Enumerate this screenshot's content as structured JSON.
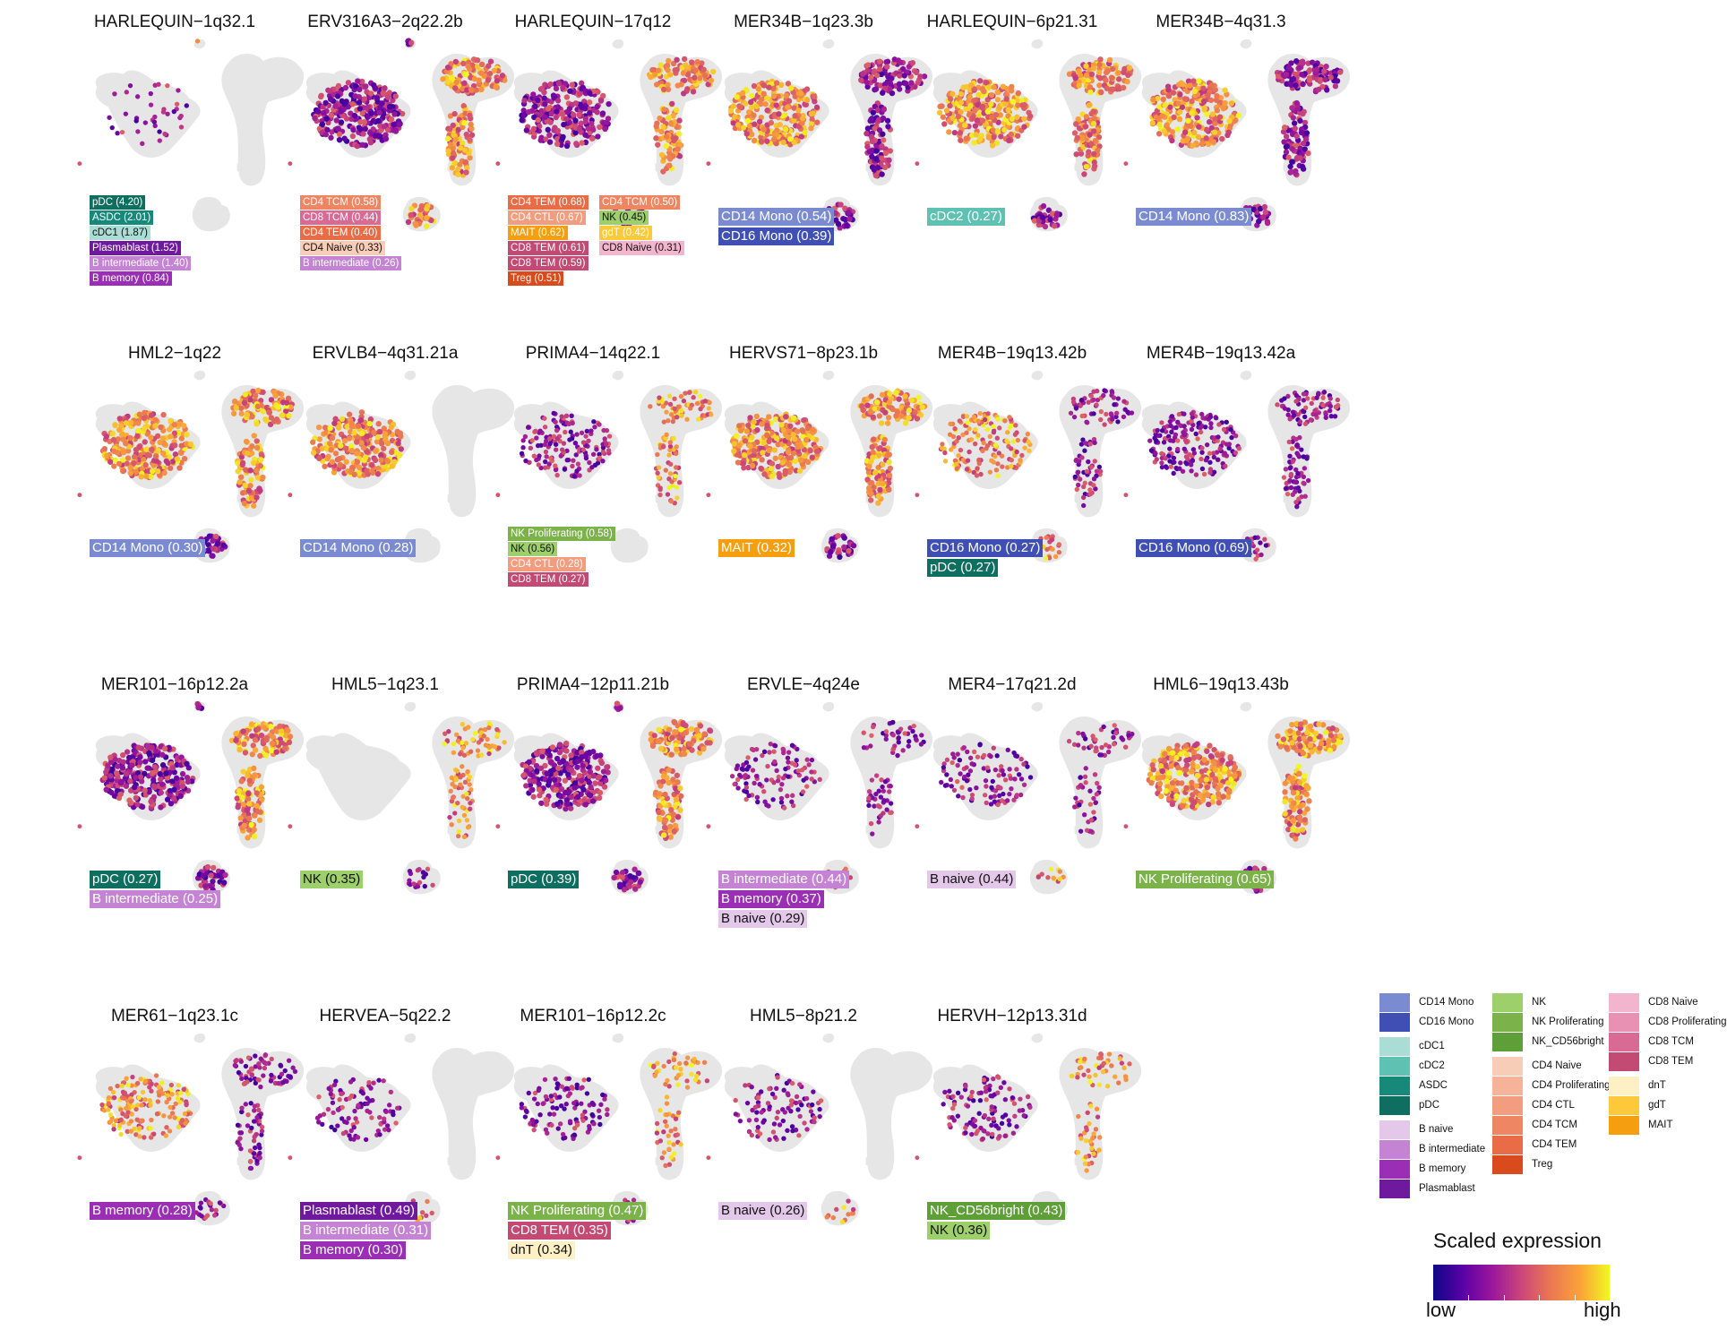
{
  "chart_data": {
    "type": "scatter",
    "description_axes": "",
    "colorbar": {
      "title": "Scaled expression",
      "low_label": "low",
      "high_label": "high",
      "colormap": [
        "#0d0887",
        "#5a01a6",
        "#9a179b",
        "#cb4679",
        "#eb7852",
        "#fba238",
        "#f0f921"
      ]
    },
    "celltype_colors": {
      "CD14 Mono": "#7a8bd1",
      "CD16 Mono": "#3f4fb3",
      "cDC1": "#a9ddd6",
      "cDC2": "#5fc1b2",
      "ASDC": "#16897a",
      "pDC": "#0e6f61",
      "B naive": "#e3c8ea",
      "B intermediate": "#c583d3",
      "B memory": "#9a2fb5",
      "Plasmablast": "#6f1a9e",
      "NK": "#9dcf6b",
      "NK Proliferating": "#7bb34a",
      "NK_CD56bright": "#5e9f38",
      "CD4 Naive": "#f8cdb8",
      "CD4 Proliferating": "#f5b49a",
      "CD4 CTL": "#f29d80",
      "CD4 TCM": "#ee8663",
      "CD4 TEM": "#e96c47",
      "Treg": "#d94a1c",
      "CD8 Naive": "#f3b5cd",
      "CD8 Proliferating": "#e891b2",
      "CD8 TCM": "#d86a93",
      "CD8 TEM": "#c24a73",
      "dnT": "#fdf0c4",
      "gdT": "#fbc93a",
      "MAIT": "#f59f10"
    },
    "legend": {
      "placement": "bottom-right",
      "columns": [
        [
          [
            "CD14 Mono",
            "CD16 Mono"
          ],
          [
            "cDC1",
            "cDC2",
            "ASDC",
            "pDC"
          ],
          [
            "B naive",
            "B intermediate",
            "B memory",
            "Plasmablast"
          ]
        ],
        [
          [
            "NK",
            "NK Proliferating",
            "NK_CD56bright"
          ],
          [
            "CD4 Naive",
            "CD4 Proliferating",
            "CD4 CTL",
            "CD4 TCM",
            "CD4 TEM",
            "Treg"
          ]
        ],
        [
          [
            "CD8 Naive",
            "CD8 Proliferating",
            "CD8 TCM",
            "CD8 TEM"
          ],
          [
            "dnT",
            "gdT",
            "MAIT"
          ]
        ]
      ]
    },
    "panels": [
      {
        "title": "HARLEQUIN−1q32.1",
        "density": 0.12,
        "hot": [
          "pdc"
        ],
        "regions": [
          "pdc",
          "mono"
        ],
        "labels": [
          [
            "pDC (4.20)",
            "pDC"
          ],
          [
            "ASDC (2.01)",
            "ASDC"
          ],
          [
            "cDC1 (1.87)",
            "cDC1"
          ],
          [
            "Plasmablast (1.52)",
            "Plasmablast"
          ],
          [
            "B intermediate (1.40)",
            "B intermediate"
          ],
          [
            "B memory (0.84)",
            "B memory"
          ]
        ],
        "size": "small"
      },
      {
        "title": "ERV316A3−2q22.2b",
        "density": 0.9,
        "hot": [
          "t",
          "b"
        ],
        "regions": [
          "mono",
          "t",
          "b",
          "pdc"
        ],
        "labels": [
          [
            "CD4 TCM (0.58)",
            "CD4 TCM"
          ],
          [
            "CD8 TCM (0.44)",
            "CD8 TCM"
          ],
          [
            "CD4 TEM (0.40)",
            "CD4 TEM"
          ],
          [
            "CD4 Naive (0.33)",
            "CD4 Naive"
          ],
          [
            "B intermediate (0.26)",
            "B intermediate"
          ]
        ],
        "size": "small"
      },
      {
        "title": "HARLEQUIN−17q12",
        "density": 0.8,
        "hot": [
          "t"
        ],
        "regions": [
          "t",
          "mono",
          "b"
        ],
        "labels": [
          [
            "CD4 TEM (0.68)",
            "CD4 TEM"
          ],
          [
            "CD4 CTL (0.67)",
            "CD4 CTL"
          ],
          [
            "MAIT (0.62)",
            "MAIT"
          ],
          [
            "CD8 TEM (0.61)",
            "CD8 TEM"
          ],
          [
            "CD8 TEM (0.59)",
            "CD8 TEM"
          ],
          [
            "Treg (0.51)",
            "Treg"
          ]
        ],
        "labels2": [
          [
            "CD4 TCM (0.50)",
            "CD4 TCM"
          ],
          [
            "NK (0.45)",
            "NK"
          ],
          [
            "gdT (0.42)",
            "gdT"
          ],
          [
            "CD8 Naive (0.31)",
            "CD8 Naive"
          ]
        ],
        "size": "small"
      },
      {
        "title": "MER34B−1q23.3b",
        "density": 0.85,
        "hot": [
          "mono"
        ],
        "regions": [
          "mono",
          "t",
          "b"
        ],
        "labels": [
          [
            "CD14 Mono (0.54)",
            "CD14 Mono"
          ],
          [
            "CD16 Mono (0.39)",
            "CD16 Mono"
          ]
        ],
        "size": "big"
      },
      {
        "title": "HARLEQUIN−6p21.31",
        "density": 0.85,
        "hot": [
          "mono",
          "t"
        ],
        "regions": [
          "mono",
          "t",
          "b"
        ],
        "labels": [
          [
            "cDC2 (0.27)",
            "cDC2"
          ]
        ],
        "size": "big"
      },
      {
        "title": "MER34B−4q31.3",
        "density": 0.85,
        "hot": [
          "mono"
        ],
        "regions": [
          "mono",
          "t",
          "b"
        ],
        "labels": [
          [
            "CD14 Mono (0.83)",
            "CD14 Mono"
          ]
        ],
        "size": "big"
      },
      {
        "title": "HML2−1q22",
        "density": 0.85,
        "hot": [
          "mono",
          "t"
        ],
        "regions": [
          "mono",
          "t",
          "b"
        ],
        "labels": [
          [
            "CD14 Mono (0.30)",
            "CD14 Mono"
          ]
        ],
        "size": "big"
      },
      {
        "title": "ERVLB4−4q31.21a",
        "density": 0.8,
        "hot": [
          "mono"
        ],
        "regions": [
          "mono"
        ],
        "labels": [
          [
            "CD14 Mono (0.28)",
            "CD14 Mono"
          ]
        ],
        "size": "big"
      },
      {
        "title": "PRIMA4−14q22.1",
        "density": 0.5,
        "hot": [
          "t"
        ],
        "regions": [
          "t",
          "mono"
        ],
        "labels": [
          [
            "NK Proliferating (0.58)",
            "NK Proliferating"
          ],
          [
            "NK (0.56)",
            "NK"
          ],
          [
            "CD4 CTL (0.28)",
            "CD4 CTL"
          ],
          [
            "CD8 TEM (0.27)",
            "CD8 TEM"
          ]
        ],
        "size": "small"
      },
      {
        "title": "HERVS71−8p23.1b",
        "density": 0.85,
        "hot": [
          "mono",
          "t"
        ],
        "regions": [
          "mono",
          "t",
          "b"
        ],
        "labels": [
          [
            "MAIT (0.32)",
            "MAIT"
          ]
        ],
        "size": "big"
      },
      {
        "title": "MER4B−19q13.42b",
        "density": 0.5,
        "hot": [
          "b",
          "mono"
        ],
        "regions": [
          "mono",
          "t",
          "b"
        ],
        "labels": [
          [
            "CD16 Mono (0.27)",
            "CD16 Mono"
          ],
          [
            "pDC (0.27)",
            "pDC"
          ]
        ],
        "size": "big"
      },
      {
        "title": "MER4B−19q13.42a",
        "density": 0.6,
        "hot": [],
        "regions": [
          "mono",
          "t",
          "b"
        ],
        "labels": [
          [
            "CD16 Mono (0.69)",
            "CD16 Mono"
          ]
        ],
        "size": "big"
      },
      {
        "title": "MER101−16p12.2a",
        "density": 0.9,
        "hot": [
          "t"
        ],
        "regions": [
          "mono",
          "t",
          "b",
          "pdc"
        ],
        "labels": [
          [
            "pDC (0.27)",
            "pDC"
          ],
          [
            "B intermediate (0.25)",
            "B intermediate"
          ]
        ],
        "size": "big"
      },
      {
        "title": "HML5−1q23.1",
        "density": 0.5,
        "hot": [
          "t"
        ],
        "regions": [
          "t",
          "b"
        ],
        "labels": [
          [
            "NK (0.35)",
            "NK"
          ]
        ],
        "size": "big"
      },
      {
        "title": "PRIMA4−12p11.21b",
        "density": 0.85,
        "hot": [
          "t"
        ],
        "regions": [
          "mono",
          "t",
          "b",
          "pdc"
        ],
        "labels": [
          [
            "pDC (0.39)",
            "pDC"
          ]
        ],
        "size": "big"
      },
      {
        "title": "ERVLE−4q24e",
        "density": 0.35,
        "hot": [
          "b"
        ],
        "regions": [
          "mono",
          "t",
          "b"
        ],
        "labels": [
          [
            "B intermediate (0.44)",
            "B intermediate"
          ],
          [
            "B memory (0.37)",
            "B memory"
          ],
          [
            "B naive (0.29)",
            "B naive"
          ]
        ],
        "size": "big"
      },
      {
        "title": "MER4−17q21.2d",
        "density": 0.35,
        "hot": [
          "b"
        ],
        "regions": [
          "mono",
          "t",
          "b"
        ],
        "labels": [
          [
            "B naive (0.44)",
            "B naive"
          ]
        ],
        "size": "big"
      },
      {
        "title": "HML6−19q13.43b",
        "density": 0.9,
        "hot": [
          "mono",
          "t"
        ],
        "regions": [
          "mono",
          "t",
          "b"
        ],
        "labels": [
          [
            "NK Proliferating (0.65)",
            "NK Proliferating"
          ]
        ],
        "size": "big"
      },
      {
        "title": "MER61−1q23.1c",
        "density": 0.55,
        "hot": [
          "mono"
        ],
        "regions": [
          "mono",
          "t",
          "b"
        ],
        "labels": [
          [
            "B memory (0.28)",
            "B memory"
          ]
        ],
        "size": "big"
      },
      {
        "title": "HERVEA−5q22.2",
        "density": 0.3,
        "hot": [
          "b"
        ],
        "regions": [
          "mono",
          "b"
        ],
        "labels": [
          [
            "Plasmablast (0.49)",
            "Plasmablast"
          ],
          [
            "B intermediate (0.31)",
            "B intermediate"
          ],
          [
            "B memory (0.30)",
            "B memory"
          ]
        ],
        "size": "big"
      },
      {
        "title": "MER101−16p12.2c",
        "density": 0.35,
        "hot": [
          "t"
        ],
        "regions": [
          "mono",
          "t",
          "b"
        ],
        "labels": [
          [
            "NK Proliferating (0.47)",
            "NK Proliferating"
          ],
          [
            "CD8 TEM (0.35)",
            "CD8 TEM"
          ],
          [
            "dnT (0.34)",
            "dnT"
          ]
        ],
        "size": "big"
      },
      {
        "title": "HML5−8p21.2",
        "density": 0.3,
        "hot": [
          "b"
        ],
        "regions": [
          "b",
          "mono"
        ],
        "labels": [
          [
            "B naive (0.26)",
            "B naive"
          ]
        ],
        "size": "big"
      },
      {
        "title": "HERVH−12p13.31d",
        "density": 0.35,
        "hot": [
          "t"
        ],
        "regions": [
          "t",
          "mono"
        ],
        "labels": [
          [
            "NK_CD56bright (0.43)",
            "NK_CD56bright"
          ],
          [
            "NK (0.36)",
            "NK"
          ]
        ],
        "size": "big"
      }
    ]
  }
}
